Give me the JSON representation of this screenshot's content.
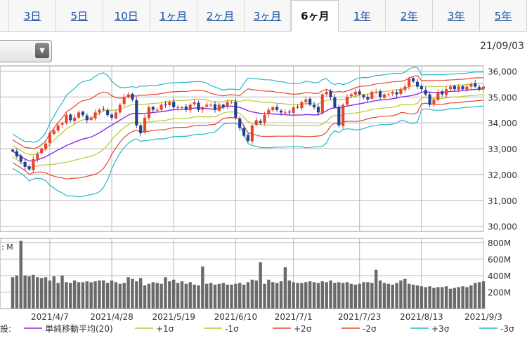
{
  "tabs": [
    {
      "label": "3日",
      "active": false
    },
    {
      "label": "5日",
      "active": false
    },
    {
      "label": "10日",
      "active": false
    },
    {
      "label": "1ヶ月",
      "active": false
    },
    {
      "label": "2ヶ月",
      "active": false
    },
    {
      "label": "3ヶ月",
      "active": false
    },
    {
      "label": "6ヶ月",
      "active": true
    },
    {
      "label": "1年",
      "active": false
    },
    {
      "label": "2年",
      "active": false
    },
    {
      "label": "3年",
      "active": false
    },
    {
      "label": "5年",
      "active": false
    }
  ],
  "header": {
    "date": "21/09/03",
    "dropdown_icon": "chevron-down-icon"
  },
  "legend": {
    "prefix": "設:",
    "items": [
      {
        "label": "単純移動平均(20)",
        "color": "#8a2be2"
      },
      {
        "label": "+1σ",
        "color": "#b8c832"
      },
      {
        "label": "-1σ",
        "color": "#b8c832"
      },
      {
        "label": "+2σ",
        "color": "#e8452a"
      },
      {
        "label": "-2σ",
        "color": "#e8452a"
      },
      {
        "label": "+3σ",
        "color": "#27b8c8"
      },
      {
        "label": "-3σ",
        "color": "#27b8c8"
      }
    ]
  },
  "chart_data": [
    {
      "type": "candlestick",
      "ylim": [
        29800,
        36200
      ],
      "yticks": [
        36000,
        35000,
        34000,
        33000,
        32000,
        31000,
        30000
      ],
      "ytick_labels": [
        "36,000",
        "35,000",
        "34,000",
        "33,000",
        "32,000",
        "31,000",
        "30,000"
      ],
      "xtick_labels": [
        "2021/4/7",
        "2021/4/28",
        "2021/5/19",
        "2021/6/10",
        "2021/7/1",
        "2021/7/23",
        "2021/8/13",
        "2021/9/3"
      ],
      "xtick_index": [
        9,
        24,
        39,
        54,
        68,
        84,
        99,
        114
      ],
      "colors": {
        "up": "#e8452a",
        "down": "#1f3f8f"
      },
      "closes": [
        32900,
        32700,
        32500,
        32300,
        32200,
        32600,
        32800,
        33000,
        33200,
        33600,
        33700,
        33900,
        34000,
        34300,
        34100,
        34200,
        34400,
        34300,
        34100,
        34200,
        34400,
        34500,
        34500,
        34300,
        34200,
        34400,
        34700,
        35000,
        35100,
        34900,
        33900,
        33600,
        34200,
        34600,
        34500,
        34500,
        34700,
        34700,
        34800,
        34600,
        34600,
        34600,
        34500,
        34700,
        34800,
        34500,
        34600,
        34700,
        34700,
        34500,
        34700,
        34600,
        34800,
        34800,
        34200,
        33800,
        33500,
        33300,
        33900,
        34100,
        34000,
        34300,
        34500,
        34600,
        34500,
        34400,
        34400,
        34400,
        34600,
        34600,
        34800,
        34900,
        34700,
        34600,
        34400,
        35100,
        35200,
        35000,
        34600,
        33900,
        34700,
        35000,
        35100,
        35200,
        35100,
        35000,
        34900,
        35200,
        35200,
        35000,
        35100,
        35100,
        35200,
        35100,
        35300,
        35400,
        35700,
        35600,
        35400,
        35300,
        35100,
        34700,
        34900,
        35200,
        35100,
        35300,
        35400,
        35300,
        35400,
        35300,
        35400,
        35500,
        35400,
        35300,
        35400
      ],
      "series_names": [
        "単純移動平均(20)",
        "+1σ",
        "-1σ",
        "+2σ",
        "-2σ",
        "+3σ",
        "-3σ"
      ]
    },
    {
      "type": "bar",
      "unit_label": "M",
      "ylim": [
        0,
        850
      ],
      "yticks": [
        200,
        400,
        600,
        800
      ],
      "ytick_labels": [
        "200M",
        "400M",
        "600M",
        "800M"
      ],
      "color": "#6a6a6a",
      "values": [
        380,
        400,
        820,
        400,
        390,
        410,
        380,
        370,
        380,
        340,
        390,
        310,
        400,
        320,
        310,
        340,
        320,
        320,
        330,
        320,
        330,
        340,
        340,
        310,
        340,
        320,
        300,
        310,
        380,
        360,
        330,
        370,
        280,
        300,
        320,
        310,
        300,
        380,
        330,
        350,
        310,
        330,
        300,
        320,
        290,
        280,
        510,
        300,
        310,
        290,
        300,
        310,
        290,
        290,
        300,
        310,
        290,
        320,
        350,
        340,
        560,
        300,
        350,
        320,
        310,
        330,
        500,
        340,
        320,
        310,
        310,
        320,
        330,
        320,
        310,
        330,
        320,
        340,
        310,
        320,
        310,
        320,
        300,
        290,
        300,
        320,
        320,
        310,
        470,
        340,
        310,
        300,
        290,
        310,
        340,
        360,
        300,
        290,
        280,
        270,
        260,
        270,
        250,
        260,
        260,
        270,
        240,
        250,
        260,
        270,
        260,
        280,
        310,
        320,
        330
      ]
    }
  ]
}
